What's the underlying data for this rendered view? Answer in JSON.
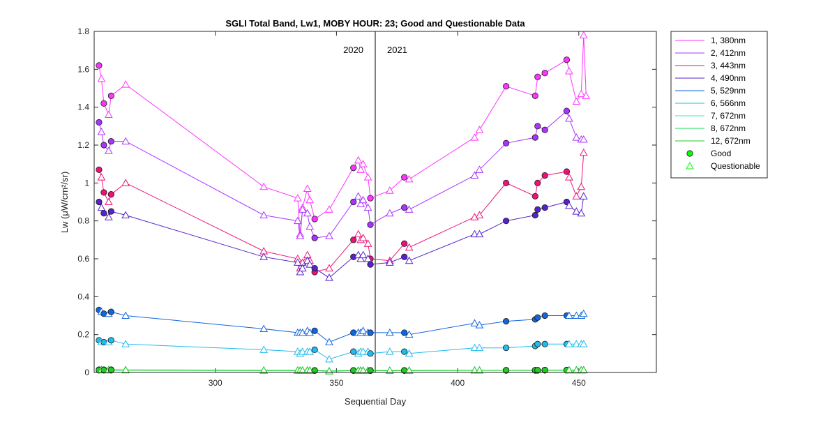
{
  "chart_data": {
    "type": "line",
    "title": "SGLI Total Band,  Lw1, MOBY HOUR: 23;  Good and Questionable Data",
    "xlabel": "Sequential Day",
    "ylabel": "Lw (μW/cm²/sr)",
    "xlim": [
      250,
      482
    ],
    "ylim": [
      0,
      1.8
    ],
    "xticks": [
      300,
      350,
      400,
      450
    ],
    "yticks": [
      0,
      0.2,
      0.4,
      0.6,
      0.8,
      1,
      1.2,
      1.4,
      1.6,
      1.8
    ],
    "grid": false,
    "legend_position": "outside-right-top",
    "year_divider_x": 366,
    "year_labels": [
      "2020",
      "2021"
    ],
    "marker_legend": [
      {
        "label": "Good",
        "marker": "circle",
        "color": "#00ff00"
      },
      {
        "label": "Questionable",
        "marker": "triangle",
        "color": "#00ff00"
      }
    ],
    "series": [
      {
        "name": "1, 380nm",
        "color": "#ff33ff",
        "x": [
          252,
          253,
          254,
          256,
          257,
          263,
          320,
          334,
          335,
          336,
          338,
          339,
          341,
          347,
          357,
          359,
          360,
          361,
          363,
          364,
          372,
          378,
          380,
          407,
          409,
          420,
          432,
          433,
          436,
          445,
          446,
          449,
          451,
          452,
          453
        ],
        "y": [
          1.62,
          1.55,
          1.42,
          1.36,
          1.46,
          1.52,
          0.98,
          0.92,
          0.73,
          0.87,
          0.97,
          0.91,
          0.81,
          0.86,
          1.08,
          1.12,
          1.07,
          1.1,
          1.03,
          0.92,
          0.96,
          1.03,
          1.02,
          1.24,
          1.28,
          1.51,
          1.46,
          1.56,
          1.58,
          1.65,
          1.59,
          1.43,
          1.47,
          1.78,
          1.46
        ],
        "quality": [
          "G",
          "Q",
          "G",
          "Q",
          "G",
          "Q",
          "Q",
          "Q",
          "Q",
          "Q",
          "Q",
          "Q",
          "G",
          "Q",
          "G",
          "Q",
          "Q",
          "Q",
          "Q",
          "G",
          "Q",
          "G",
          "Q",
          "Q",
          "Q",
          "G",
          "G",
          "G",
          "G",
          "G",
          "Q",
          "Q",
          "Q",
          "Q",
          "Q"
        ]
      },
      {
        "name": "2, 412nm",
        "color": "#aa33ff",
        "x": [
          252,
          253,
          254,
          256,
          257,
          263,
          320,
          334,
          335,
          336,
          338,
          339,
          341,
          347,
          357,
          359,
          360,
          361,
          363,
          364,
          372,
          378,
          380,
          407,
          409,
          420,
          432,
          433,
          436,
          445,
          446,
          449,
          451,
          452
        ],
        "y": [
          1.32,
          1.27,
          1.2,
          1.17,
          1.22,
          1.22,
          0.83,
          0.8,
          0.72,
          0.86,
          0.84,
          0.77,
          0.71,
          0.72,
          0.9,
          0.93,
          0.89,
          0.91,
          0.87,
          0.78,
          0.84,
          0.87,
          0.86,
          1.04,
          1.07,
          1.21,
          1.24,
          1.3,
          1.28,
          1.38,
          1.34,
          1.24,
          1.23,
          1.23
        ],
        "quality": [
          "G",
          "Q",
          "G",
          "Q",
          "G",
          "Q",
          "Q",
          "Q",
          "Q",
          "Q",
          "Q",
          "Q",
          "G",
          "Q",
          "G",
          "Q",
          "Q",
          "Q",
          "Q",
          "G",
          "Q",
          "G",
          "Q",
          "Q",
          "Q",
          "G",
          "G",
          "G",
          "G",
          "G",
          "Q",
          "Q",
          "Q",
          "Q"
        ]
      },
      {
        "name": "3, 443nm",
        "color": "#ee1177",
        "x": [
          252,
          253,
          254,
          256,
          257,
          263,
          320,
          334,
          335,
          336,
          338,
          339,
          341,
          347,
          357,
          359,
          360,
          361,
          363,
          364,
          372,
          378,
          380,
          407,
          409,
          420,
          432,
          433,
          436,
          445,
          446,
          449,
          451,
          452
        ],
        "y": [
          1.07,
          1.03,
          0.95,
          0.9,
          0.94,
          1.0,
          0.64,
          0.6,
          0.55,
          0.58,
          0.62,
          0.59,
          0.53,
          0.55,
          0.7,
          0.73,
          0.7,
          0.71,
          0.68,
          0.6,
          0.59,
          0.68,
          0.66,
          0.82,
          0.83,
          1.0,
          0.93,
          1.0,
          1.04,
          1.06,
          1.03,
          0.93,
          0.98,
          1.16
        ],
        "quality": [
          "G",
          "Q",
          "G",
          "Q",
          "G",
          "Q",
          "Q",
          "Q",
          "Q",
          "Q",
          "Q",
          "Q",
          "G",
          "Q",
          "G",
          "Q",
          "Q",
          "Q",
          "Q",
          "G",
          "Q",
          "G",
          "Q",
          "Q",
          "Q",
          "G",
          "G",
          "G",
          "G",
          "G",
          "Q",
          "Q",
          "Q",
          "Q"
        ]
      },
      {
        "name": "4, 490nm",
        "color": "#5522cc",
        "x": [
          252,
          253,
          254,
          256,
          257,
          263,
          320,
          334,
          335,
          336,
          338,
          339,
          341,
          347,
          357,
          359,
          360,
          361,
          363,
          364,
          372,
          378,
          380,
          407,
          409,
          420,
          432,
          433,
          436,
          445,
          446,
          449,
          451,
          452
        ],
        "y": [
          0.9,
          0.87,
          0.84,
          0.82,
          0.85,
          0.83,
          0.61,
          0.58,
          0.53,
          0.55,
          0.59,
          0.57,
          0.55,
          0.5,
          0.61,
          0.62,
          0.6,
          0.62,
          0.6,
          0.57,
          0.58,
          0.61,
          0.59,
          0.73,
          0.73,
          0.8,
          0.83,
          0.86,
          0.87,
          0.9,
          0.88,
          0.85,
          0.84,
          0.93
        ],
        "quality": [
          "G",
          "Q",
          "G",
          "Q",
          "G",
          "Q",
          "Q",
          "Q",
          "Q",
          "Q",
          "Q",
          "Q",
          "G",
          "Q",
          "G",
          "Q",
          "Q",
          "Q",
          "Q",
          "G",
          "Q",
          "G",
          "Q",
          "Q",
          "Q",
          "G",
          "G",
          "G",
          "G",
          "G",
          "Q",
          "Q",
          "Q",
          "Q"
        ]
      },
      {
        "name": "5, 529nm",
        "color": "#1166dd",
        "x": [
          252,
          253,
          254,
          256,
          257,
          263,
          320,
          334,
          335,
          336,
          338,
          339,
          341,
          347,
          357,
          359,
          360,
          361,
          363,
          364,
          372,
          378,
          380,
          407,
          409,
          420,
          432,
          433,
          436,
          445,
          446,
          449,
          451,
          452
        ],
        "y": [
          0.33,
          0.32,
          0.31,
          0.31,
          0.32,
          0.3,
          0.23,
          0.21,
          0.21,
          0.21,
          0.22,
          0.21,
          0.22,
          0.16,
          0.21,
          0.21,
          0.21,
          0.22,
          0.21,
          0.21,
          0.21,
          0.21,
          0.2,
          0.26,
          0.25,
          0.27,
          0.28,
          0.29,
          0.3,
          0.3,
          0.3,
          0.3,
          0.3,
          0.31
        ],
        "quality": [
          "G",
          "Q",
          "G",
          "Q",
          "G",
          "Q",
          "Q",
          "Q",
          "Q",
          "Q",
          "Q",
          "Q",
          "G",
          "Q",
          "G",
          "Q",
          "Q",
          "Q",
          "Q",
          "G",
          "Q",
          "G",
          "Q",
          "Q",
          "Q",
          "G",
          "G",
          "G",
          "G",
          "G",
          "Q",
          "Q",
          "Q",
          "Q"
        ]
      },
      {
        "name": "6, 566nm",
        "color": "#22bbee",
        "x": [
          252,
          253,
          254,
          256,
          257,
          263,
          320,
          334,
          335,
          336,
          338,
          339,
          341,
          347,
          357,
          359,
          360,
          361,
          363,
          364,
          372,
          378,
          380,
          407,
          409,
          420,
          432,
          433,
          436,
          445,
          446,
          449,
          451,
          452
        ],
        "y": [
          0.17,
          0.16,
          0.16,
          0.16,
          0.17,
          0.15,
          0.12,
          0.11,
          0.1,
          0.11,
          0.11,
          0.11,
          0.12,
          0.07,
          0.11,
          0.1,
          0.11,
          0.11,
          0.11,
          0.1,
          0.11,
          0.11,
          0.1,
          0.13,
          0.13,
          0.13,
          0.14,
          0.15,
          0.15,
          0.15,
          0.15,
          0.15,
          0.15,
          0.15
        ],
        "quality": [
          "G",
          "Q",
          "G",
          "Q",
          "G",
          "Q",
          "Q",
          "Q",
          "Q",
          "Q",
          "Q",
          "Q",
          "G",
          "Q",
          "G",
          "Q",
          "Q",
          "Q",
          "Q",
          "G",
          "Q",
          "G",
          "Q",
          "Q",
          "Q",
          "G",
          "G",
          "G",
          "G",
          "G",
          "Q",
          "Q",
          "Q",
          "Q"
        ]
      },
      {
        "name": "7, 672nm",
        "color": "#33eebb",
        "x": [
          252,
          253,
          254,
          256,
          257,
          263,
          320,
          334,
          335,
          336,
          338,
          339,
          341,
          347,
          357,
          359,
          360,
          361,
          363,
          364,
          372,
          378,
          380,
          407,
          409,
          420,
          432,
          433,
          436,
          445,
          446,
          449,
          451,
          452
        ],
        "y": [
          0.015,
          0.015,
          0.015,
          0.015,
          0.015,
          0.014,
          0.012,
          0.012,
          0.011,
          0.012,
          0.012,
          0.011,
          0.011,
          0.008,
          0.011,
          0.011,
          0.011,
          0.011,
          0.011,
          0.011,
          0.011,
          0.011,
          0.011,
          0.012,
          0.012,
          0.012,
          0.012,
          0.012,
          0.013,
          0.013,
          0.013,
          0.013,
          0.013,
          0.014
        ],
        "quality": [
          "G",
          "Q",
          "G",
          "Q",
          "G",
          "Q",
          "Q",
          "Q",
          "Q",
          "Q",
          "Q",
          "Q",
          "G",
          "Q",
          "G",
          "Q",
          "Q",
          "Q",
          "Q",
          "G",
          "Q",
          "G",
          "Q",
          "Q",
          "Q",
          "G",
          "G",
          "G",
          "G",
          "G",
          "Q",
          "Q",
          "Q",
          "Q"
        ]
      },
      {
        "name": "8, 672nm",
        "color": "#11dd55",
        "x": [
          252,
          253,
          254,
          256,
          257,
          263,
          320,
          334,
          335,
          336,
          338,
          339,
          341,
          347,
          357,
          359,
          360,
          361,
          363,
          364,
          372,
          378,
          380,
          407,
          409,
          420,
          432,
          433,
          436,
          445,
          446,
          449,
          451,
          452
        ],
        "y": [
          0.012,
          0.012,
          0.012,
          0.012,
          0.012,
          0.012,
          0.01,
          0.01,
          0.01,
          0.01,
          0.01,
          0.01,
          0.01,
          0.007,
          0.01,
          0.01,
          0.01,
          0.01,
          0.01,
          0.01,
          0.01,
          0.01,
          0.01,
          0.011,
          0.011,
          0.011,
          0.011,
          0.011,
          0.012,
          0.012,
          0.012,
          0.012,
          0.012,
          0.012
        ],
        "quality": [
          "G",
          "Q",
          "G",
          "Q",
          "G",
          "Q",
          "Q",
          "Q",
          "Q",
          "Q",
          "Q",
          "Q",
          "G",
          "Q",
          "G",
          "Q",
          "Q",
          "Q",
          "Q",
          "G",
          "Q",
          "G",
          "Q",
          "Q",
          "Q",
          "G",
          "G",
          "G",
          "G",
          "G",
          "Q",
          "Q",
          "Q",
          "Q"
        ]
      },
      {
        "name": "12, 672nm",
        "color": "#22cc22",
        "x": [
          252,
          253,
          254,
          256,
          257,
          263,
          320,
          334,
          335,
          336,
          338,
          339,
          341,
          347,
          357,
          359,
          360,
          361,
          363,
          364,
          372,
          378,
          380,
          407,
          409,
          420,
          432,
          433,
          436,
          445,
          446,
          449,
          451,
          452
        ],
        "y": [
          0.013,
          0.013,
          0.013,
          0.013,
          0.013,
          0.013,
          0.011,
          0.011,
          0.01,
          0.011,
          0.011,
          0.01,
          0.01,
          0.007,
          0.01,
          0.01,
          0.01,
          0.01,
          0.01,
          0.01,
          0.01,
          0.01,
          0.01,
          0.011,
          0.011,
          0.011,
          0.012,
          0.012,
          0.012,
          0.012,
          0.012,
          0.012,
          0.012,
          0.013
        ],
        "quality": [
          "G",
          "Q",
          "G",
          "Q",
          "G",
          "Q",
          "Q",
          "Q",
          "Q",
          "Q",
          "Q",
          "Q",
          "G",
          "Q",
          "G",
          "Q",
          "Q",
          "Q",
          "Q",
          "G",
          "Q",
          "G",
          "Q",
          "Q",
          "Q",
          "G",
          "G",
          "G",
          "G",
          "G",
          "Q",
          "Q",
          "Q",
          "Q"
        ]
      }
    ]
  }
}
